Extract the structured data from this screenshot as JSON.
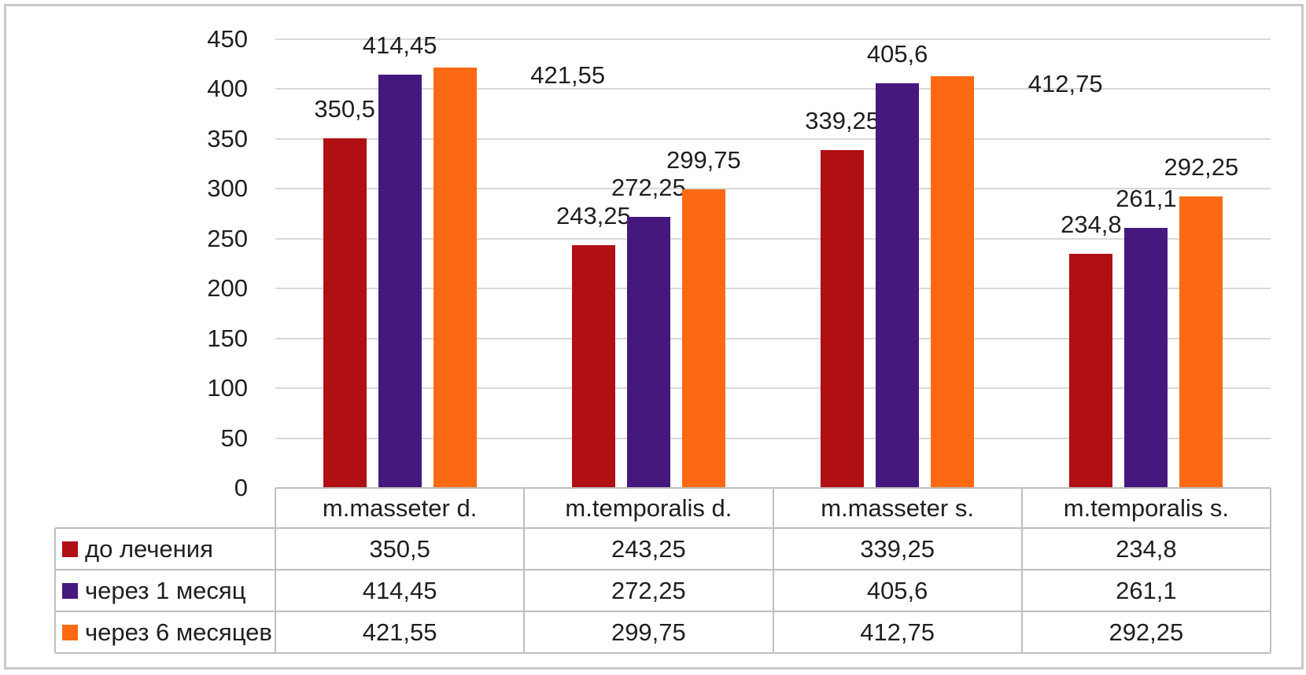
{
  "chart_data": {
    "type": "bar",
    "title": "",
    "categories": [
      "m.masseter d.",
      "m.temporalis d.",
      "m.masseter s.",
      "m.temporalis s."
    ],
    "series": [
      {
        "name": "до лечения",
        "color": "#B00F14",
        "values": [
          350.5,
          243.25,
          339.25,
          234.8
        ],
        "value_labels": [
          "350,5",
          "243,25",
          "339,25",
          "234,8"
        ]
      },
      {
        "name": "через 1 месяц",
        "color": "#45187E",
        "values": [
          414.45,
          272.25,
          405.6,
          261.1
        ],
        "value_labels": [
          "414,45",
          "272,25",
          "405,6",
          "261,1"
        ]
      },
      {
        "name": "через 6 месяцев",
        "color": "#FB6A13",
        "values": [
          421.55,
          299.75,
          412.75,
          292.25
        ],
        "value_labels": [
          "421,55",
          "299,75",
          "412,75",
          "292,25"
        ]
      }
    ],
    "xlabel": "",
    "ylabel": "",
    "ylim": [
      0,
      450
    ],
    "y_tick_step": 50,
    "y_tick_labels": [
      "0",
      "50",
      "100",
      "150",
      "200",
      "250",
      "300",
      "350",
      "400",
      "450"
    ],
    "grid": true,
    "legend_position": "data-table-left-column",
    "has_data_table": true,
    "decimal_separator": ","
  },
  "colors": {
    "gridline": "#D9D9D9",
    "table_border": "#BFBFBF",
    "frame_border": "#C9C9C9",
    "text": "#1F1F1F",
    "background": "#FFFFFF"
  }
}
